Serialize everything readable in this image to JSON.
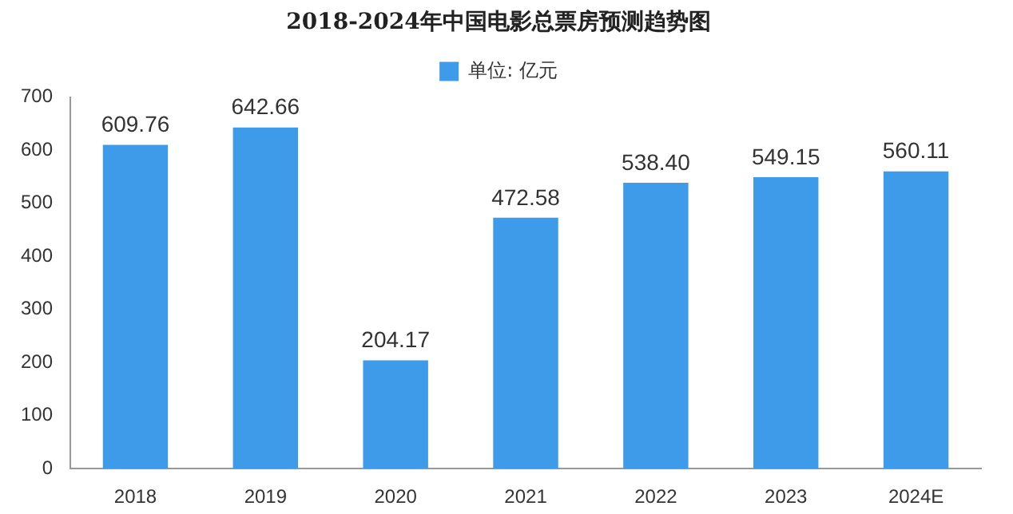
{
  "chart_data": {
    "type": "bar",
    "title": "2018-2024年中国电影总票房预测趋势图",
    "categories": [
      "2018",
      "2019",
      "2020",
      "2021",
      "2022",
      "2023",
      "2024E"
    ],
    "series": [
      {
        "name": "单位: 亿元",
        "color": "#3d9be9",
        "values": [
          609.76,
          642.66,
          204.17,
          472.58,
          538.4,
          549.15,
          560.11
        ],
        "value_labels": [
          "609.76",
          "642.66",
          "204.17",
          "472.58",
          "538.40",
          "549.15",
          "560.11"
        ]
      }
    ],
    "ylim": [
      0,
      700
    ],
    "yticks": [
      0,
      100,
      200,
      300,
      400,
      500,
      600,
      700
    ],
    "grid": false,
    "legend": "top"
  }
}
